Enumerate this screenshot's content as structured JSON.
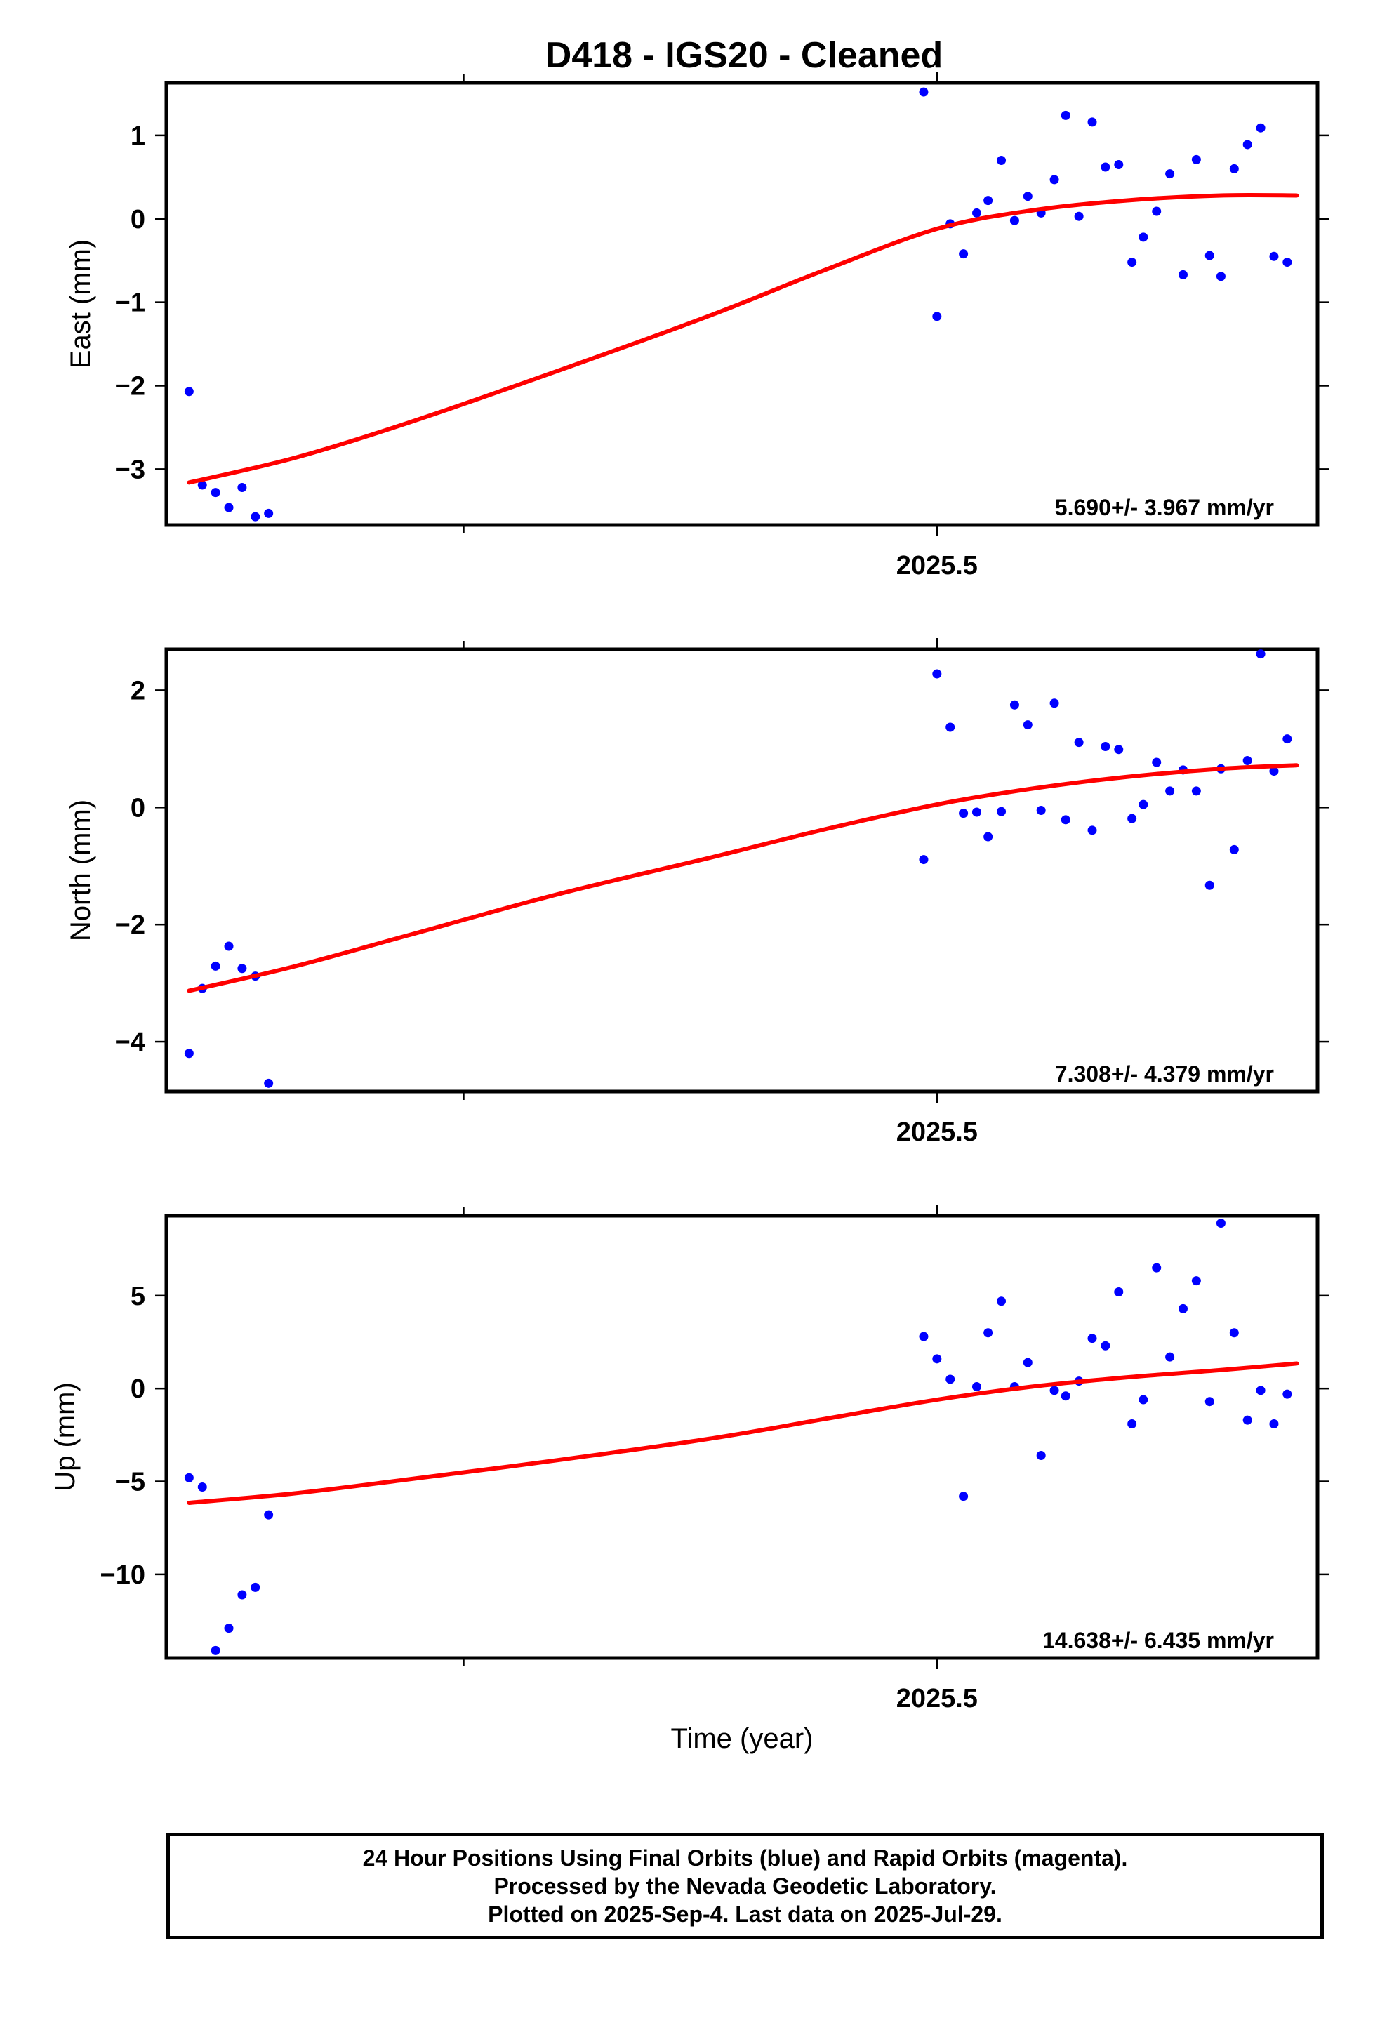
{
  "title": "D418  - IGS20 - Cleaned",
  "footer": {
    "line1": "24 Hour Positions Using Final Orbits (blue) and Rapid Orbits (magenta).",
    "line2": "Processed by the Nevada Geodetic Laboratory.",
    "line3": "Plotted on 2025-Sep-4. Last data on 2025-Jul-29."
  },
  "colors": {
    "points": "#0000ff",
    "fit": "#ff0000"
  },
  "chart_data": [
    {
      "type": "scatter",
      "name": "east",
      "ylabel": "East (mm)",
      "xlabel": "",
      "x_tick_labels": [
        {
          "value": 2025.5,
          "label": "2025.5"
        }
      ],
      "x_minor_ticks": [
        2025.25
      ],
      "xlim": [
        2025.093,
        2025.701
      ],
      "ylim": [
        -3.67,
        1.63
      ],
      "y_ticks": [
        -3,
        -2,
        -1,
        0,
        1
      ],
      "y_tick_labels": [
        "−3",
        "−2",
        "−1",
        "0",
        "1"
      ],
      "rate": "5.690+/- 3.967 mm/yr",
      "fit": [
        [
          2025.105,
          -3.16
        ],
        [
          2025.16,
          -2.87
        ],
        [
          2025.22,
          -2.45
        ],
        [
          2025.3,
          -1.82
        ],
        [
          2025.38,
          -1.16
        ],
        [
          2025.44,
          -0.62
        ],
        [
          2025.5,
          -0.12
        ],
        [
          2025.55,
          0.1
        ],
        [
          2025.6,
          0.22
        ],
        [
          2025.65,
          0.28
        ],
        [
          2025.69,
          0.28
        ]
      ],
      "points": [
        [
          2025.105,
          -2.07
        ],
        [
          2025.112,
          -3.19
        ],
        [
          2025.119,
          -3.28
        ],
        [
          2025.126,
          -3.46
        ],
        [
          2025.133,
          -3.22
        ],
        [
          2025.14,
          -3.57
        ],
        [
          2025.147,
          -3.53
        ],
        [
          2025.493,
          1.52
        ],
        [
          2025.5,
          -1.17
        ],
        [
          2025.507,
          -0.06
        ],
        [
          2025.514,
          -0.42
        ],
        [
          2025.521,
          0.07
        ],
        [
          2025.527,
          0.22
        ],
        [
          2025.534,
          0.7
        ],
        [
          2025.541,
          -0.02
        ],
        [
          2025.548,
          0.27
        ],
        [
          2025.555,
          0.07
        ],
        [
          2025.562,
          0.47
        ],
        [
          2025.568,
          1.24
        ],
        [
          2025.575,
          0.03
        ],
        [
          2025.582,
          1.16
        ],
        [
          2025.589,
          0.62
        ],
        [
          2025.596,
          0.65
        ],
        [
          2025.603,
          -0.52
        ],
        [
          2025.609,
          -0.22
        ],
        [
          2025.616,
          0.09
        ],
        [
          2025.623,
          0.54
        ],
        [
          2025.63,
          -0.67
        ],
        [
          2025.637,
          0.71
        ],
        [
          2025.644,
          -0.44
        ],
        [
          2025.65,
          -0.69
        ],
        [
          2025.657,
          0.6
        ],
        [
          2025.664,
          0.89
        ],
        [
          2025.671,
          1.09
        ],
        [
          2025.678,
          -0.45
        ],
        [
          2025.685,
          -0.52
        ]
      ]
    },
    {
      "type": "scatter",
      "name": "north",
      "ylabel": "North (mm)",
      "xlabel": "",
      "x_tick_labels": [
        {
          "value": 2025.5,
          "label": "2025.5"
        }
      ],
      "x_minor_ticks": [
        2025.25
      ],
      "xlim": [
        2025.093,
        2025.701
      ],
      "ylim": [
        -4.85,
        2.7
      ],
      "y_ticks": [
        -4,
        -2,
        0,
        2
      ],
      "y_tick_labels": [
        "−4",
        "−2",
        "0",
        "2"
      ],
      "rate": "7.308+/- 4.379 mm/yr",
      "fit": [
        [
          2025.105,
          -3.13
        ],
        [
          2025.16,
          -2.72
        ],
        [
          2025.22,
          -2.19
        ],
        [
          2025.3,
          -1.48
        ],
        [
          2025.38,
          -0.86
        ],
        [
          2025.44,
          -0.38
        ],
        [
          2025.5,
          0.05
        ],
        [
          2025.55,
          0.32
        ],
        [
          2025.6,
          0.52
        ],
        [
          2025.65,
          0.66
        ],
        [
          2025.69,
          0.72
        ]
      ],
      "points": [
        [
          2025.105,
          -4.2
        ],
        [
          2025.112,
          -3.09
        ],
        [
          2025.119,
          -2.71
        ],
        [
          2025.126,
          -2.37
        ],
        [
          2025.133,
          -2.75
        ],
        [
          2025.14,
          -2.88
        ],
        [
          2025.147,
          -4.71
        ],
        [
          2025.493,
          -0.89
        ],
        [
          2025.5,
          2.28
        ],
        [
          2025.507,
          1.37
        ],
        [
          2025.514,
          -0.1
        ],
        [
          2025.521,
          -0.08
        ],
        [
          2025.527,
          -0.5
        ],
        [
          2025.534,
          -0.07
        ],
        [
          2025.541,
          1.75
        ],
        [
          2025.548,
          1.41
        ],
        [
          2025.555,
          -0.05
        ],
        [
          2025.562,
          1.78
        ],
        [
          2025.568,
          -0.21
        ],
        [
          2025.575,
          1.11
        ],
        [
          2025.582,
          -0.39
        ],
        [
          2025.589,
          1.04
        ],
        [
          2025.596,
          0.99
        ],
        [
          2025.603,
          -0.19
        ],
        [
          2025.609,
          0.05
        ],
        [
          2025.616,
          0.77
        ],
        [
          2025.623,
          0.28
        ],
        [
          2025.63,
          0.64
        ],
        [
          2025.637,
          0.28
        ],
        [
          2025.644,
          -1.33
        ],
        [
          2025.65,
          0.66
        ],
        [
          2025.657,
          -0.72
        ],
        [
          2025.664,
          0.8
        ],
        [
          2025.671,
          2.62
        ],
        [
          2025.678,
          0.62
        ],
        [
          2025.685,
          1.17
        ]
      ]
    },
    {
      "type": "scatter",
      "name": "up",
      "ylabel": "Up (mm)",
      "xlabel": "Time (year)",
      "x_tick_labels": [
        {
          "value": 2025.5,
          "label": "2025.5"
        }
      ],
      "x_minor_ticks": [
        2025.25
      ],
      "xlim": [
        2025.093,
        2025.701
      ],
      "ylim": [
        -14.5,
        9.3
      ],
      "y_ticks": [
        -10,
        -5,
        0,
        5
      ],
      "y_tick_labels": [
        "−10",
        "−5",
        "0",
        "5"
      ],
      "rate": "14.638+/- 6.435 mm/yr",
      "fit": [
        [
          2025.105,
          -6.15
        ],
        [
          2025.16,
          -5.65
        ],
        [
          2025.22,
          -4.9
        ],
        [
          2025.3,
          -3.85
        ],
        [
          2025.38,
          -2.7
        ],
        [
          2025.44,
          -1.65
        ],
        [
          2025.5,
          -0.6
        ],
        [
          2025.55,
          0.1
        ],
        [
          2025.6,
          0.6
        ],
        [
          2025.65,
          1.0
        ],
        [
          2025.69,
          1.35
        ]
      ],
      "points": [
        [
          2025.105,
          -4.8
        ],
        [
          2025.112,
          -5.3
        ],
        [
          2025.119,
          -14.1
        ],
        [
          2025.126,
          -12.9
        ],
        [
          2025.133,
          -11.1
        ],
        [
          2025.14,
          -10.7
        ],
        [
          2025.147,
          -6.8
        ],
        [
          2025.493,
          2.8
        ],
        [
          2025.5,
          1.6
        ],
        [
          2025.507,
          0.5
        ],
        [
          2025.514,
          -5.8
        ],
        [
          2025.521,
          0.1
        ],
        [
          2025.527,
          3.0
        ],
        [
          2025.534,
          4.7
        ],
        [
          2025.541,
          0.1
        ],
        [
          2025.548,
          1.4
        ],
        [
          2025.555,
          -3.6
        ],
        [
          2025.562,
          -0.1
        ],
        [
          2025.568,
          -0.4
        ],
        [
          2025.575,
          0.4
        ],
        [
          2025.582,
          2.7
        ],
        [
          2025.589,
          2.3
        ],
        [
          2025.596,
          5.2
        ],
        [
          2025.603,
          -1.9
        ],
        [
          2025.609,
          -0.6
        ],
        [
          2025.616,
          6.5
        ],
        [
          2025.623,
          1.7
        ],
        [
          2025.63,
          4.3
        ],
        [
          2025.637,
          5.8
        ],
        [
          2025.644,
          -0.7
        ],
        [
          2025.65,
          8.9
        ],
        [
          2025.657,
          3.0
        ],
        [
          2025.664,
          -1.7
        ],
        [
          2025.671,
          -0.1
        ],
        [
          2025.678,
          -1.9
        ],
        [
          2025.685,
          -0.3
        ]
      ]
    }
  ]
}
